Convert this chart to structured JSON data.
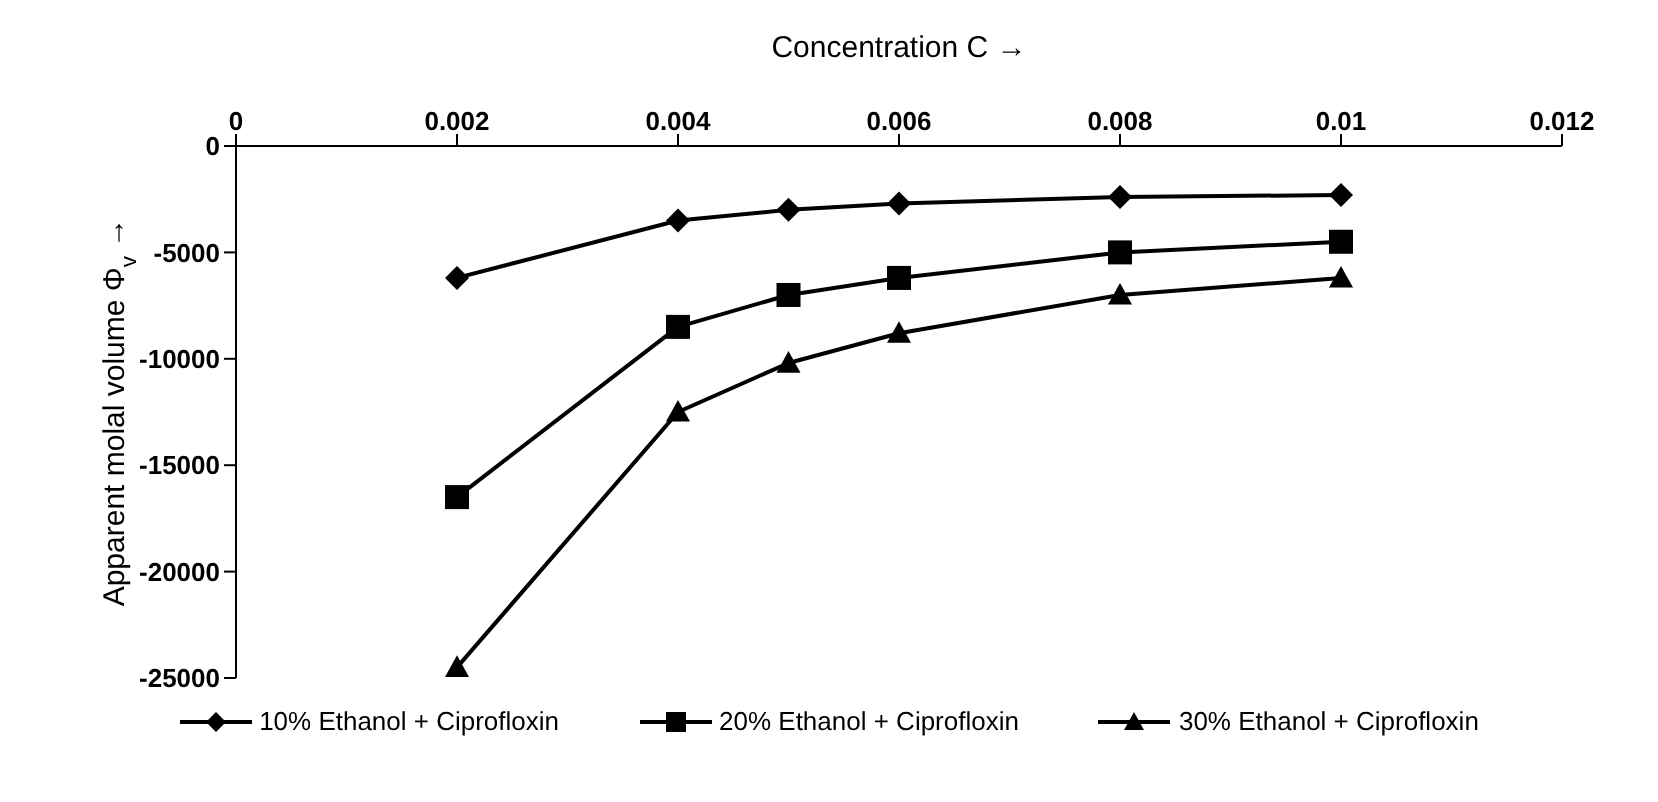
{
  "chart_data": {
    "type": "line",
    "xlabel": "Concentration C →",
    "ylabel": "Apparent molal volume Φ$_{v}$ →",
    "x": [
      0.002,
      0.004,
      0.005,
      0.006,
      0.008,
      0.01
    ],
    "series": [
      {
        "name": "10% Ethanol + Ciprofloxin",
        "color": "#000000",
        "marker": "diamond",
        "values": [
          -6200,
          -3500,
          -3000,
          -2700,
          -2400,
          -2300
        ]
      },
      {
        "name": "20% Ethanol + Ciprofloxin",
        "color": "#000000",
        "marker": "square",
        "values": [
          -16500,
          -8500,
          -7000,
          -6200,
          -5000,
          -4500
        ]
      },
      {
        "name": "30% Ethanol + Ciprofloxin",
        "color": "#000000",
        "marker": "triangle",
        "values": [
          -24500,
          -12500,
          -10200,
          -8800,
          -7000,
          -6200
        ]
      }
    ],
    "xlim": [
      0,
      0.012
    ],
    "xticks": [
      0,
      0.002,
      0.004,
      0.006,
      0.008,
      0.01,
      0.012
    ],
    "ylim": [
      -25000,
      0
    ],
    "yticks": [
      0,
      -5000,
      -10000,
      -15000,
      -20000,
      -25000
    ],
    "grid": false,
    "legend": "bottom",
    "line_style": "solid"
  }
}
